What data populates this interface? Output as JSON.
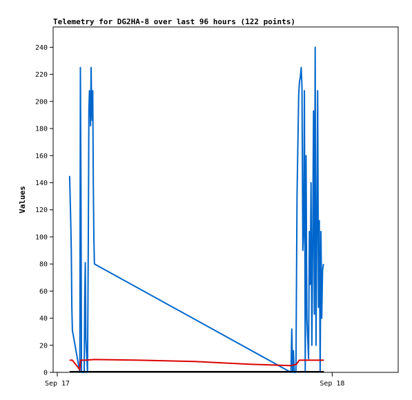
{
  "chart_data": {
    "type": "line",
    "title": "Telemetry for DG2HA-8 over last 96 hours (122 points)",
    "xlabel": "",
    "ylabel": "Values",
    "ylim": [
      0,
      255
    ],
    "xlim": [
      0,
      1.24
    ],
    "grid": false,
    "x_ticks": [
      {
        "value": 0,
        "label": "Sep 17"
      },
      {
        "value": 1,
        "label": "Sep 18"
      }
    ],
    "y_ticks": [
      0,
      20,
      40,
      60,
      80,
      100,
      120,
      140,
      160,
      180,
      200,
      220,
      240
    ],
    "colors": {
      "series1": "#0066cc",
      "series2": "#dd0000",
      "series3": "#000000"
    },
    "series": [
      {
        "key": "series1",
        "points": [
          [
            0.045,
            145
          ],
          [
            0.047,
            128
          ],
          [
            0.049,
            112
          ],
          [
            0.051,
            90
          ],
          [
            0.053,
            48
          ],
          [
            0.055,
            31
          ],
          [
            0.082,
            0
          ],
          [
            0.084,
            225
          ],
          [
            0.086,
            138
          ],
          [
            0.088,
            0
          ],
          [
            0.098,
            0
          ],
          [
            0.1,
            55
          ],
          [
            0.102,
            81
          ],
          [
            0.104,
            25
          ],
          [
            0.11,
            0
          ],
          [
            0.113,
            100
          ],
          [
            0.115,
            193
          ],
          [
            0.117,
            208
          ],
          [
            0.119,
            200
          ],
          [
            0.121,
            182
          ],
          [
            0.123,
            225
          ],
          [
            0.125,
            195
          ],
          [
            0.127,
            186
          ],
          [
            0.129,
            208
          ],
          [
            0.131,
            140
          ],
          [
            0.133,
            100
          ],
          [
            0.135,
            80
          ],
          [
            0.85,
            0
          ],
          [
            0.853,
            32
          ],
          [
            0.856,
            0
          ],
          [
            0.859,
            16
          ],
          [
            0.862,
            0
          ],
          [
            0.868,
            0
          ],
          [
            0.872,
            130
          ],
          [
            0.875,
            167
          ],
          [
            0.878,
            205
          ],
          [
            0.881,
            215
          ],
          [
            0.884,
            218
          ],
          [
            0.887,
            225
          ],
          [
            0.89,
            210
          ],
          [
            0.893,
            90
          ],
          [
            0.896,
            104
          ],
          [
            0.899,
            208
          ],
          [
            0.902,
            0
          ],
          [
            0.905,
            160
          ],
          [
            0.908,
            40
          ],
          [
            0.911,
            25
          ],
          [
            0.914,
            10
          ],
          [
            0.917,
            104
          ],
          [
            0.92,
            65
          ],
          [
            0.923,
            140
          ],
          [
            0.926,
            20
          ],
          [
            0.929,
            95
          ],
          [
            0.932,
            193
          ],
          [
            0.935,
            43
          ],
          [
            0.938,
            240
          ],
          [
            0.941,
            20
          ],
          [
            0.944,
            104
          ],
          [
            0.947,
            208
          ],
          [
            0.95,
            48
          ],
          [
            0.953,
            112
          ],
          [
            0.956,
            0
          ],
          [
            0.959,
            104
          ],
          [
            0.962,
            40
          ],
          [
            0.965,
            75
          ],
          [
            0.968,
            80
          ]
        ]
      },
      {
        "key": "series2",
        "points": [
          [
            0.045,
            9
          ],
          [
            0.055,
            9
          ],
          [
            0.082,
            2
          ],
          [
            0.084,
            9
          ],
          [
            0.1,
            9
          ],
          [
            0.135,
            9.5
          ],
          [
            0.3,
            9
          ],
          [
            0.5,
            8
          ],
          [
            0.7,
            6
          ],
          [
            0.85,
            5
          ],
          [
            0.87,
            6
          ],
          [
            0.88,
            9
          ],
          [
            0.97,
            9
          ]
        ]
      },
      {
        "key": "series3",
        "points": [
          [
            0.045,
            0.5
          ],
          [
            0.97,
            0.5
          ]
        ]
      }
    ]
  }
}
